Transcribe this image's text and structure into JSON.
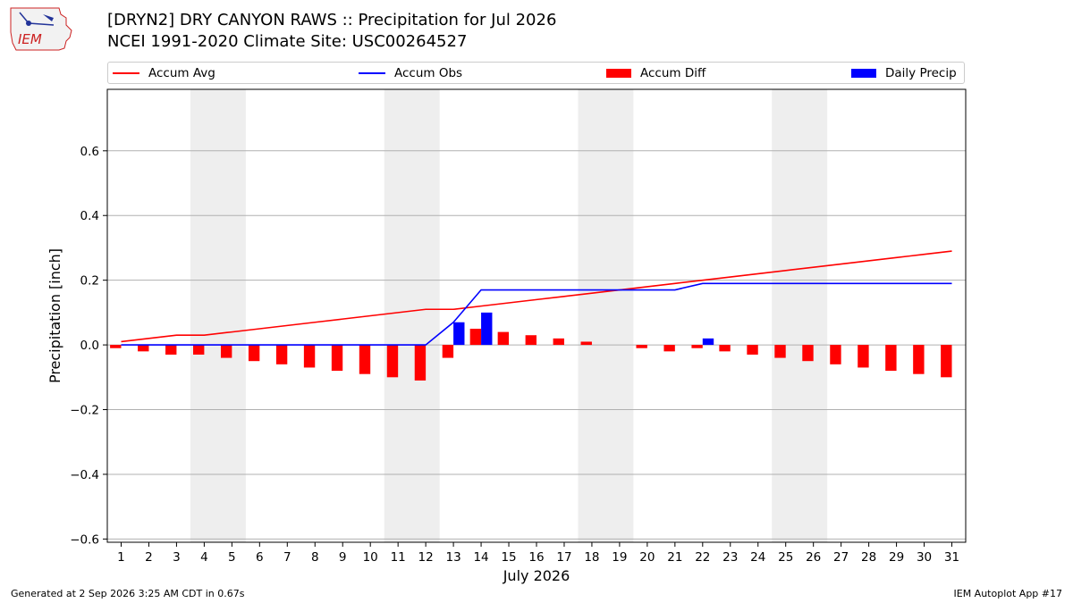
{
  "header": {
    "logo_text": "IEM",
    "title_line1": "[DRYN2] DRY CANYON RAWS :: Precipitation for Jul 2026",
    "title_line2": "NCEI 1991-2020 Climate Site: USC00264527"
  },
  "legend": {
    "items": [
      {
        "label": "Accum Avg",
        "kind": "line",
        "color": "#ff0000"
      },
      {
        "label": "Accum Obs",
        "kind": "line",
        "color": "#0000ff"
      },
      {
        "label": "Accum Diff",
        "kind": "bar",
        "color": "#ff0000"
      },
      {
        "label": "Daily Precip",
        "kind": "bar",
        "color": "#0000ff"
      }
    ]
  },
  "footer": {
    "left": "Generated at 2 Sep 2026 3:25 AM CDT in 0.67s",
    "right": "IEM Autoplot App #17"
  },
  "chart_data": {
    "type": "bar",
    "xlabel": "July 2026",
    "ylabel": "Precipitation [inch]",
    "ylim": [
      -0.61,
      0.79
    ],
    "yticks": [
      -0.6,
      -0.4,
      -0.2,
      0.0,
      0.2,
      0.4,
      0.6
    ],
    "ytick_labels": [
      "−0.6",
      "−0.4",
      "−0.2",
      "0.0",
      "0.2",
      "0.4",
      "0.6"
    ],
    "grid": "horizontal",
    "days": [
      1,
      2,
      3,
      4,
      5,
      6,
      7,
      8,
      9,
      10,
      11,
      12,
      13,
      14,
      15,
      16,
      17,
      18,
      19,
      20,
      21,
      22,
      23,
      24,
      25,
      26,
      27,
      28,
      29,
      30,
      31
    ],
    "weekend_shading": [
      [
        4,
        5
      ],
      [
        11,
        12
      ],
      [
        18,
        19
      ],
      [
        25,
        26
      ]
    ],
    "series": [
      {
        "name": "Accum Avg",
        "kind": "line",
        "color": "#ff0000",
        "values": [
          0.01,
          0.02,
          0.03,
          0.03,
          0.04,
          0.05,
          0.06,
          0.07,
          0.08,
          0.09,
          0.1,
          0.11,
          0.11,
          0.12,
          0.13,
          0.14,
          0.15,
          0.16,
          0.17,
          0.18,
          0.19,
          0.2,
          0.21,
          0.22,
          0.23,
          0.24,
          0.25,
          0.26,
          0.27,
          0.28,
          0.29
        ]
      },
      {
        "name": "Accum Obs",
        "kind": "line",
        "color": "#0000ff",
        "values": [
          0,
          0,
          0,
          0,
          0,
          0,
          0,
          0,
          0,
          0,
          0,
          0,
          0.07,
          0.17,
          0.17,
          0.17,
          0.17,
          0.17,
          0.17,
          0.17,
          0.17,
          0.19,
          0.19,
          0.19,
          0.19,
          0.19,
          0.19,
          0.19,
          0.19,
          0.19,
          0.19
        ]
      },
      {
        "name": "Accum Diff",
        "kind": "bar",
        "color": "#ff0000",
        "values": [
          -0.01,
          -0.02,
          -0.03,
          -0.03,
          -0.04,
          -0.05,
          -0.06,
          -0.07,
          -0.08,
          -0.09,
          -0.1,
          -0.11,
          -0.04,
          0.05,
          0.04,
          0.03,
          0.02,
          0.01,
          0.0,
          -0.01,
          -0.02,
          -0.01,
          -0.02,
          -0.03,
          -0.04,
          -0.05,
          -0.06,
          -0.07,
          -0.08,
          -0.09,
          -0.1
        ]
      },
      {
        "name": "Daily Precip",
        "kind": "bar",
        "color": "#0000ff",
        "values": [
          0,
          0,
          0,
          0,
          0,
          0,
          0,
          0,
          0,
          0,
          0,
          0,
          0.07,
          0.1,
          0,
          0,
          0,
          0,
          0,
          0,
          0,
          0.02,
          0,
          0,
          0,
          0,
          0,
          0,
          0,
          0,
          0
        ]
      }
    ]
  }
}
